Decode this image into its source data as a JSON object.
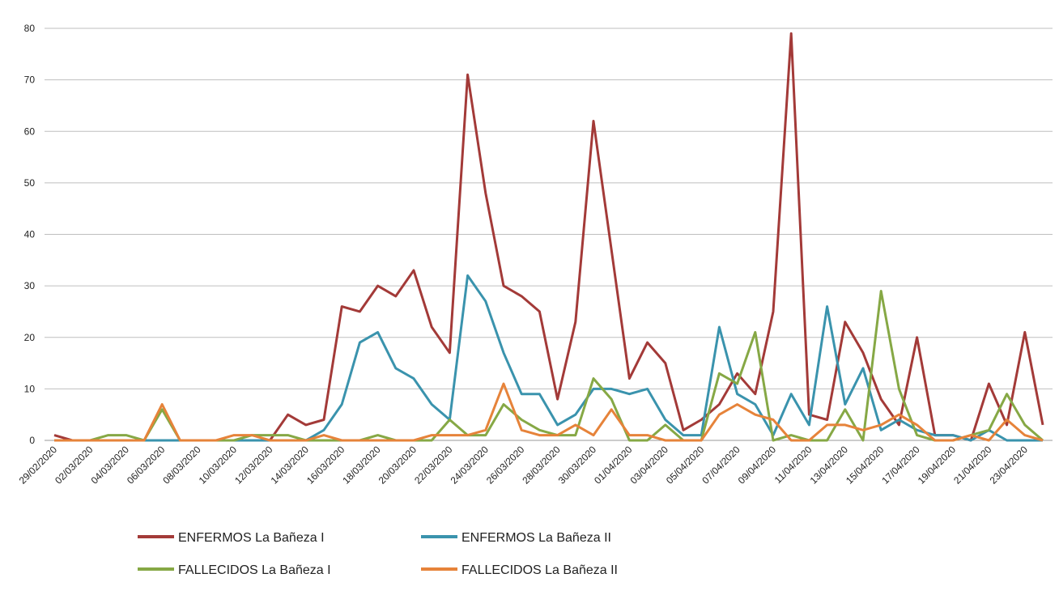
{
  "chart_data": {
    "type": "line",
    "categories": [
      "29/02/2020",
      null,
      "02/03/2020",
      null,
      "04/03/2020",
      null,
      "06/03/2020",
      null,
      "08/03/2020",
      null,
      "10/03/2020",
      null,
      "12/03/2020",
      null,
      "14/03/2020",
      null,
      "16/03/2020",
      null,
      "18/03/2020",
      null,
      "20/03/2020",
      null,
      "22/03/2020",
      null,
      "24/03/2020",
      null,
      "26/03/2020",
      null,
      "28/03/2020",
      null,
      "30/03/2020",
      null,
      "01/04/2020",
      null,
      "03/04/2020",
      null,
      "05/04/2020",
      null,
      "07/04/2020",
      null,
      "09/04/2020",
      null,
      "11/04/2020",
      null,
      "13/04/2020",
      null,
      "15/04/2020",
      null,
      "17/04/2020",
      null,
      "19/04/2020",
      null,
      "21/04/2020",
      null,
      "23/04/2020",
      null
    ],
    "series": [
      {
        "name": "ENFERMOS La Bañeza I",
        "color": "#a33a38",
        "values": [
          1,
          0,
          0,
          0,
          0,
          0,
          0,
          0,
          0,
          0,
          0,
          0,
          0,
          5,
          3,
          4,
          26,
          25,
          30,
          28,
          33,
          22,
          17,
          71,
          48,
          30,
          28,
          25,
          8,
          23,
          62,
          37,
          12,
          19,
          15,
          2,
          4,
          7,
          13,
          9,
          25,
          79,
          5,
          4,
          23,
          17,
          8,
          3,
          20,
          1,
          1,
          0,
          11,
          3,
          21,
          3
        ]
      },
      {
        "name": "ENFERMOS La Bañeza II",
        "color": "#3a93ad",
        "values": [
          0,
          0,
          0,
          0,
          0,
          0,
          0,
          0,
          0,
          0,
          0,
          0,
          0,
          0,
          0,
          2,
          7,
          19,
          21,
          14,
          12,
          7,
          4,
          32,
          27,
          17,
          9,
          9,
          3,
          5,
          10,
          10,
          9,
          10,
          4,
          1,
          1,
          22,
          9,
          7,
          1,
          9,
          3,
          26,
          7,
          14,
          2,
          4,
          2,
          1,
          1,
          0,
          2,
          0,
          0,
          0
        ]
      },
      {
        "name": "FALLECIDOS La Bañeza I",
        "color": "#86a845",
        "values": [
          0,
          0,
          0,
          1,
          1,
          0,
          6,
          0,
          0,
          0,
          0,
          1,
          1,
          1,
          0,
          0,
          0,
          0,
          1,
          0,
          0,
          0,
          4,
          1,
          1,
          7,
          4,
          2,
          1,
          1,
          12,
          8,
          0,
          0,
          3,
          0,
          0,
          13,
          11,
          21,
          0,
          1,
          0,
          0,
          6,
          0,
          29,
          10,
          1,
          0,
          0,
          1,
          2,
          9,
          3,
          0
        ]
      },
      {
        "name": "FALLECIDOS La Bañeza II",
        "color": "#e6833a",
        "values": [
          0,
          0,
          0,
          0,
          0,
          0,
          7,
          0,
          0,
          0,
          1,
          1,
          0,
          0,
          0,
          1,
          0,
          0,
          0,
          0,
          0,
          1,
          1,
          1,
          2,
          11,
          2,
          1,
          1,
          3,
          1,
          6,
          1,
          1,
          0,
          0,
          0,
          5,
          7,
          5,
          4,
          0,
          0,
          3,
          3,
          2,
          3,
          5,
          3,
          0,
          0,
          1,
          0,
          4,
          1,
          0
        ]
      }
    ],
    "ylim": [
      0,
      80
    ],
    "yticks": [
      0,
      10,
      20,
      30,
      40,
      50,
      60,
      70,
      80
    ],
    "grid": true
  }
}
